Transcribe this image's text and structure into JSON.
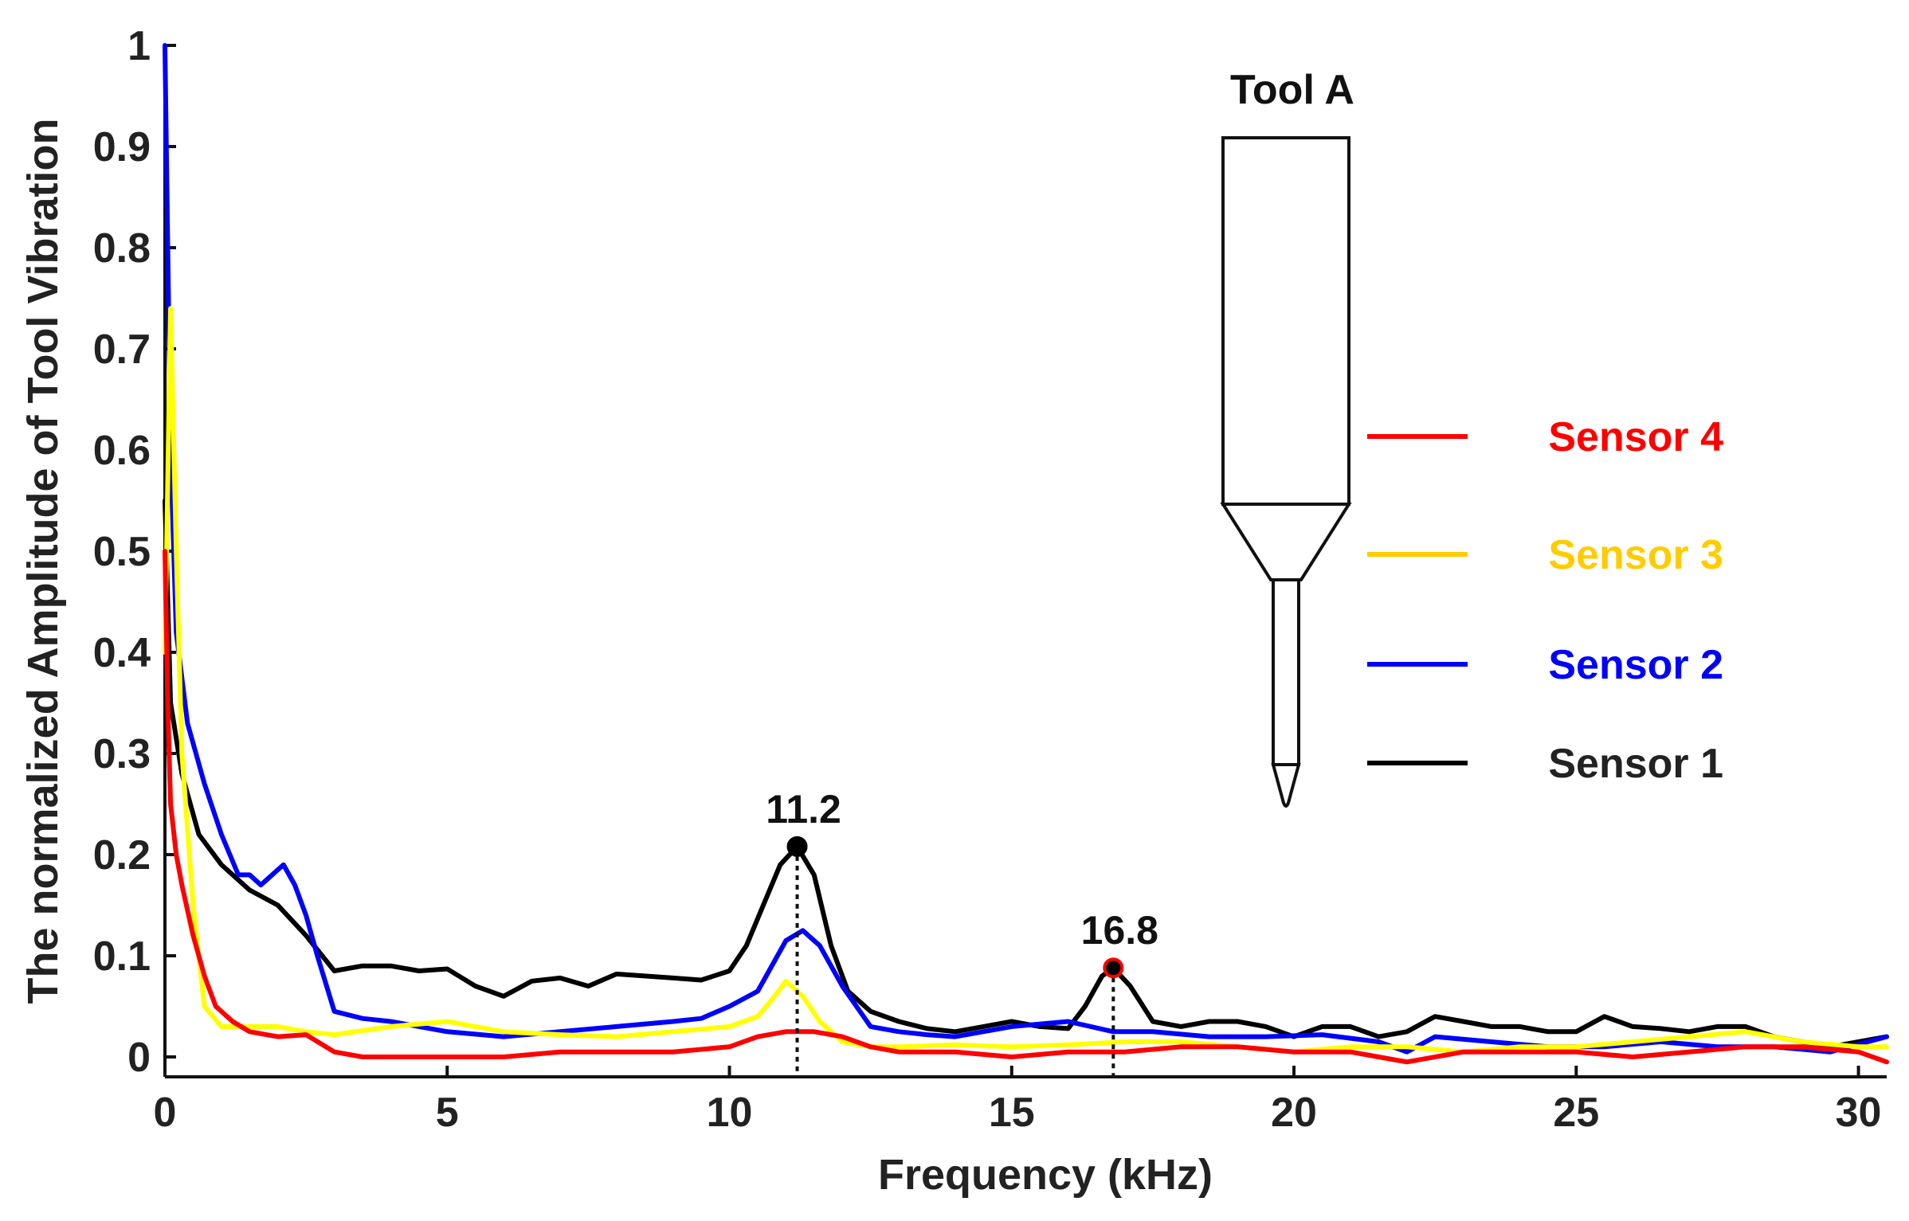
{
  "chart_data": {
    "type": "line",
    "title": "",
    "xlabel": "Frequency (kHz)",
    "ylabel": "The normalized Amplitude of Tool Vibration",
    "xlim": [
      0,
      30.5
    ],
    "ylim": [
      -0.015,
      1.0
    ],
    "grid": false,
    "x_ticks": [
      "0",
      "5",
      "10",
      "15",
      "20",
      "25",
      "30"
    ],
    "x_tick_values": [
      0,
      5,
      10,
      15,
      20,
      25,
      30
    ],
    "y_ticks": [
      "0",
      "0.1",
      "0.2",
      "0.3",
      "0.4",
      "0.5",
      "0.6",
      "0.7",
      "0.8",
      "0.9",
      "1"
    ],
    "y_tick_values": [
      0,
      0.1,
      0.2,
      0.3,
      0.4,
      0.5,
      0.6,
      0.7,
      0.8,
      0.9,
      1
    ],
    "series": [
      {
        "name": "Sensor 1",
        "color": "#000000",
        "x": [
          0,
          0.1,
          0.3,
          0.6,
          1.0,
          1.5,
          2.0,
          2.5,
          3.0,
          3.5,
          4.0,
          4.5,
          5.0,
          5.5,
          6.0,
          6.5,
          7.0,
          7.5,
          8.0,
          8.5,
          9.0,
          9.5,
          10.0,
          10.3,
          10.6,
          10.9,
          11.2,
          11.5,
          11.8,
          12.1,
          12.5,
          13.0,
          13.5,
          14.0,
          14.5,
          15.0,
          15.5,
          16.0,
          16.3,
          16.6,
          16.8,
          17.1,
          17.5,
          18.0,
          18.5,
          19.0,
          19.5,
          20.0,
          20.5,
          21.0,
          21.5,
          22.0,
          22.5,
          23.0,
          23.5,
          24.0,
          24.5,
          25.0,
          25.5,
          26.0,
          26.5,
          27.0,
          27.5,
          28.0,
          28.5,
          29.0,
          29.5,
          30.0,
          30.5
        ],
        "values": [
          0.55,
          0.35,
          0.28,
          0.22,
          0.19,
          0.165,
          0.15,
          0.12,
          0.085,
          0.09,
          0.09,
          0.085,
          0.087,
          0.07,
          0.06,
          0.075,
          0.078,
          0.07,
          0.082,
          0.08,
          0.078,
          0.076,
          0.085,
          0.11,
          0.15,
          0.19,
          0.208,
          0.18,
          0.11,
          0.065,
          0.045,
          0.035,
          0.028,
          0.025,
          0.03,
          0.035,
          0.03,
          0.028,
          0.05,
          0.08,
          0.088,
          0.07,
          0.035,
          0.03,
          0.035,
          0.035,
          0.03,
          0.02,
          0.03,
          0.03,
          0.02,
          0.025,
          0.04,
          0.035,
          0.03,
          0.03,
          0.025,
          0.025,
          0.04,
          0.03,
          0.028,
          0.025,
          0.03,
          0.03,
          0.02,
          0.015,
          0.01,
          0.015,
          0.02
        ]
      },
      {
        "name": "Sensor 2",
        "color": "#0000ff",
        "x": [
          0,
          0.1,
          0.2,
          0.4,
          0.7,
          1.0,
          1.3,
          1.5,
          1.7,
          1.9,
          2.1,
          2.3,
          2.5,
          2.7,
          3.0,
          3.5,
          4.0,
          5.0,
          6.0,
          7.0,
          8.0,
          9.0,
          9.5,
          10.0,
          10.5,
          11.0,
          11.3,
          11.6,
          12.0,
          12.5,
          13.0,
          13.5,
          14.0,
          15.0,
          16.0,
          16.8,
          17.5,
          18.5,
          19.5,
          20.5,
          21.5,
          22.0,
          22.5,
          23.5,
          24.5,
          25.5,
          26.5,
          27.5,
          28.5,
          29.5,
          30.5
        ],
        "values": [
          1.0,
          0.6,
          0.42,
          0.33,
          0.27,
          0.22,
          0.18,
          0.18,
          0.17,
          0.18,
          0.19,
          0.17,
          0.14,
          0.1,
          0.045,
          0.038,
          0.035,
          0.025,
          0.02,
          0.025,
          0.03,
          0.035,
          0.038,
          0.05,
          0.065,
          0.115,
          0.125,
          0.11,
          0.07,
          0.03,
          0.025,
          0.022,
          0.02,
          0.03,
          0.035,
          0.025,
          0.025,
          0.02,
          0.02,
          0.022,
          0.015,
          0.005,
          0.02,
          0.015,
          0.01,
          0.01,
          0.015,
          0.01,
          0.01,
          0.005,
          0.02
        ]
      },
      {
        "name": "Sensor 3",
        "color": "#ffff00",
        "x": [
          0,
          0.1,
          0.2,
          0.3,
          0.5,
          0.7,
          1.0,
          1.5,
          2.0,
          2.5,
          3.0,
          4.0,
          5.0,
          6.0,
          7.0,
          8.0,
          9.0,
          10.0,
          10.5,
          10.8,
          11.0,
          11.3,
          11.6,
          12.0,
          12.5,
          13.0,
          14.0,
          15.0,
          16.0,
          17.0,
          18.0,
          19.0,
          20.0,
          21.0,
          22.0,
          23.0,
          24.0,
          25.0,
          26.0,
          27.0,
          28.0,
          29.0,
          30.0,
          30.5
        ],
        "values": [
          0.4,
          0.74,
          0.5,
          0.3,
          0.15,
          0.05,
          0.03,
          0.03,
          0.03,
          0.025,
          0.022,
          0.03,
          0.035,
          0.025,
          0.022,
          0.02,
          0.025,
          0.03,
          0.04,
          0.06,
          0.075,
          0.06,
          0.035,
          0.015,
          0.01,
          0.01,
          0.012,
          0.01,
          0.012,
          0.015,
          0.015,
          0.01,
          0.005,
          0.01,
          0.01,
          0.005,
          0.01,
          0.01,
          0.015,
          0.02,
          0.025,
          0.015,
          0.01,
          0.01
        ]
      },
      {
        "name": "Sensor 4",
        "color": "#ff0000",
        "x": [
          0,
          0.05,
          0.1,
          0.2,
          0.3,
          0.5,
          0.7,
          0.9,
          1.2,
          1.5,
          2.0,
          2.5,
          3.0,
          3.5,
          4.0,
          5.0,
          6.0,
          7.0,
          8.0,
          9.0,
          10.0,
          10.5,
          11.0,
          11.5,
          12.0,
          12.5,
          13.0,
          14.0,
          15.0,
          16.0,
          17.0,
          18.0,
          19.0,
          20.0,
          21.0,
          21.5,
          22.0,
          23.0,
          24.0,
          25.0,
          26.0,
          27.0,
          28.0,
          29.0,
          30.0,
          30.5
        ],
        "values": [
          0.5,
          0.35,
          0.25,
          0.2,
          0.17,
          0.12,
          0.08,
          0.05,
          0.035,
          0.025,
          0.02,
          0.022,
          0.005,
          0.0,
          0.0,
          0.0,
          0.0,
          0.005,
          0.005,
          0.005,
          0.01,
          0.02,
          0.025,
          0.025,
          0.02,
          0.01,
          0.005,
          0.005,
          0.0,
          0.005,
          0.005,
          0.01,
          0.01,
          0.005,
          0.005,
          0.0,
          -0.005,
          0.005,
          0.005,
          0.005,
          0.0,
          0.005,
          0.01,
          0.01,
          0.005,
          -0.005
        ]
      }
    ],
    "annotations": [
      {
        "label": "11.2",
        "x": 11.2,
        "y": 0.208,
        "series": "Sensor 1",
        "marker_color": "#000000"
      },
      {
        "label": "16.8",
        "x": 16.8,
        "y": 0.088,
        "series": "Sensor 1",
        "marker_color": "#000000",
        "marker_edge": "#ff0000"
      }
    ],
    "legend": [
      {
        "label": "Sensor 4",
        "line_color": "#ff0000",
        "text_color": "#ff0000"
      },
      {
        "label": "Sensor 3",
        "line_color": "#ffcc00",
        "text_color": "#ffcc00"
      },
      {
        "label": "Sensor 2",
        "line_color": "#0000ff",
        "text_color": "#0000ff"
      },
      {
        "label": "Sensor 1",
        "line_color": "#000000",
        "text_color": "#222222"
      }
    ],
    "inset_label": "Tool A"
  }
}
